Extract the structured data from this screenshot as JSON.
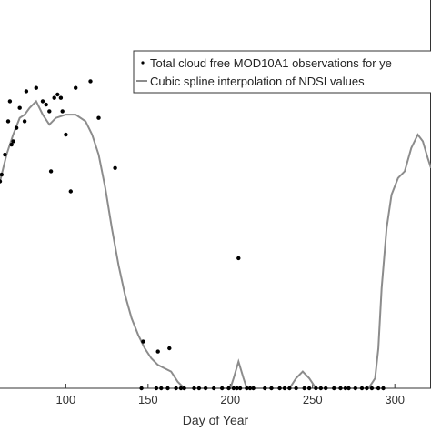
{
  "chart_data": {
    "type": "scatter",
    "xlabel": "Day of Year",
    "ylabel": "",
    "title": "",
    "xlim": [
      60,
      322
    ],
    "ylim": [
      0,
      1
    ],
    "x_ticks": [
      100,
      150,
      200,
      250,
      300
    ],
    "grid": false,
    "legend_position": "top-right",
    "colors": {
      "points": "#000000",
      "line": "#8c8c8c",
      "axis": "#333333"
    },
    "series": [
      {
        "name": "Total cloud free MOD10A1 observations for ye",
        "kind": "scatter",
        "points": [
          [
            60,
            0.62
          ],
          [
            61,
            0.64
          ],
          [
            63,
            0.7
          ],
          [
            65,
            0.8
          ],
          [
            66,
            0.86
          ],
          [
            67,
            0.73
          ],
          [
            68,
            0.74
          ],
          [
            70,
            0.78
          ],
          [
            72,
            0.84
          ],
          [
            75,
            0.8
          ],
          [
            76,
            0.89
          ],
          [
            82,
            0.9
          ],
          [
            86,
            0.86
          ],
          [
            88,
            0.85
          ],
          [
            90,
            0.83
          ],
          [
            91,
            0.65
          ],
          [
            93,
            0.87
          ],
          [
            95,
            0.88
          ],
          [
            97,
            0.87
          ],
          [
            98,
            0.83
          ],
          [
            100,
            0.76
          ],
          [
            103,
            0.59
          ],
          [
            106,
            0.9
          ],
          [
            115,
            0.92
          ],
          [
            120,
            0.81
          ],
          [
            130,
            0.66
          ],
          [
            147,
            0.14
          ],
          [
            156,
            0.11
          ],
          [
            163,
            0.12
          ],
          [
            205,
            0.39
          ]
        ]
      },
      {
        "name": "",
        "kind": "scatter-baseline",
        "points": [
          [
            146,
            0
          ],
          [
            155,
            0
          ],
          [
            158,
            0
          ],
          [
            162,
            0
          ],
          [
            167,
            0
          ],
          [
            170,
            0
          ],
          [
            172,
            0
          ],
          [
            178,
            0
          ],
          [
            181,
            0
          ],
          [
            185,
            0
          ],
          [
            190,
            0
          ],
          [
            195,
            0
          ],
          [
            199,
            0
          ],
          [
            202,
            0
          ],
          [
            204,
            0
          ],
          [
            206,
            0
          ],
          [
            210,
            0
          ],
          [
            212,
            0
          ],
          [
            214,
            0
          ],
          [
            221,
            0
          ],
          [
            225,
            0
          ],
          [
            230,
            0
          ],
          [
            233,
            0
          ],
          [
            236,
            0
          ],
          [
            240,
            0
          ],
          [
            245,
            0
          ],
          [
            248,
            0
          ],
          [
            252,
            0
          ],
          [
            255,
            0
          ],
          [
            258,
            0
          ],
          [
            263,
            0
          ],
          [
            267,
            0
          ],
          [
            270,
            0
          ],
          [
            272,
            0
          ],
          [
            276,
            0
          ],
          [
            280,
            0
          ],
          [
            283,
            0
          ],
          [
            286,
            0
          ],
          [
            290,
            0
          ],
          [
            293,
            0
          ]
        ]
      },
      {
        "name": "Cubic spline interpolation of NDSI values",
        "kind": "line",
        "points": [
          [
            60,
            0.62
          ],
          [
            64,
            0.7
          ],
          [
            68,
            0.76
          ],
          [
            72,
            0.81
          ],
          [
            75,
            0.82
          ],
          [
            78,
            0.84
          ],
          [
            82,
            0.86
          ],
          [
            86,
            0.82
          ],
          [
            90,
            0.79
          ],
          [
            94,
            0.81
          ],
          [
            100,
            0.82
          ],
          [
            106,
            0.82
          ],
          [
            112,
            0.8
          ],
          [
            116,
            0.76
          ],
          [
            120,
            0.7
          ],
          [
            124,
            0.6
          ],
          [
            128,
            0.48
          ],
          [
            132,
            0.37
          ],
          [
            136,
            0.28
          ],
          [
            140,
            0.21
          ],
          [
            144,
            0.16
          ],
          [
            148,
            0.12
          ],
          [
            152,
            0.09
          ],
          [
            156,
            0.07
          ],
          [
            160,
            0.06
          ],
          [
            164,
            0.05
          ],
          [
            168,
            0.02
          ],
          [
            172,
            0
          ],
          [
            200,
            0
          ],
          [
            202,
            0.03
          ],
          [
            205,
            0.08
          ],
          [
            208,
            0.03
          ],
          [
            210,
            0
          ],
          [
            236,
            0
          ],
          [
            240,
            0.03
          ],
          [
            244,
            0.05
          ],
          [
            248,
            0.03
          ],
          [
            252,
            0
          ],
          [
            284,
            0
          ],
          [
            288,
            0.03
          ],
          [
            290,
            0.12
          ],
          [
            292,
            0.3
          ],
          [
            295,
            0.48
          ],
          [
            298,
            0.58
          ],
          [
            302,
            0.63
          ],
          [
            306,
            0.65
          ],
          [
            310,
            0.72
          ],
          [
            314,
            0.76
          ],
          [
            317,
            0.74
          ],
          [
            320,
            0.69
          ],
          [
            322,
            0.66
          ]
        ]
      }
    ]
  }
}
